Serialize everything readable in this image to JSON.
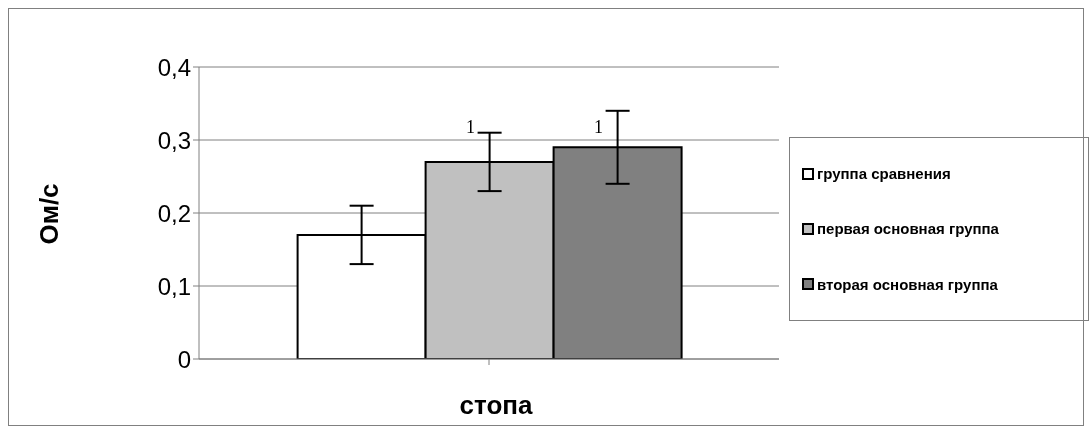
{
  "chart_data": {
    "type": "bar",
    "xlabel": "стопа",
    "ylabel": "Ом/с",
    "categories": [
      null
    ],
    "series": [
      {
        "name": "группа сравнения",
        "color": "#ffffff",
        "values": [
          0.17
        ],
        "errors": [
          0.04
        ]
      },
      {
        "name": "первая основная группа",
        "color": "#c0c0c0",
        "values": [
          0.27
        ],
        "errors": [
          0.04
        ]
      },
      {
        "name": "вторая основная группа",
        "color": "#808080",
        "values": [
          0.29
        ],
        "errors": [
          0.05
        ]
      }
    ],
    "annotations": [
      "1",
      "1"
    ],
    "ylim": [
      0,
      0.4
    ],
    "yticks": [
      {
        "value": 0,
        "label": "0"
      },
      {
        "value": 0.1,
        "label": "0,1"
      },
      {
        "value": 0.2,
        "label": "0,2"
      },
      {
        "value": 0.3,
        "label": "0,3"
      },
      {
        "value": 0.4,
        "label": "0,4"
      }
    ],
    "grid": "y",
    "legend": "right"
  }
}
